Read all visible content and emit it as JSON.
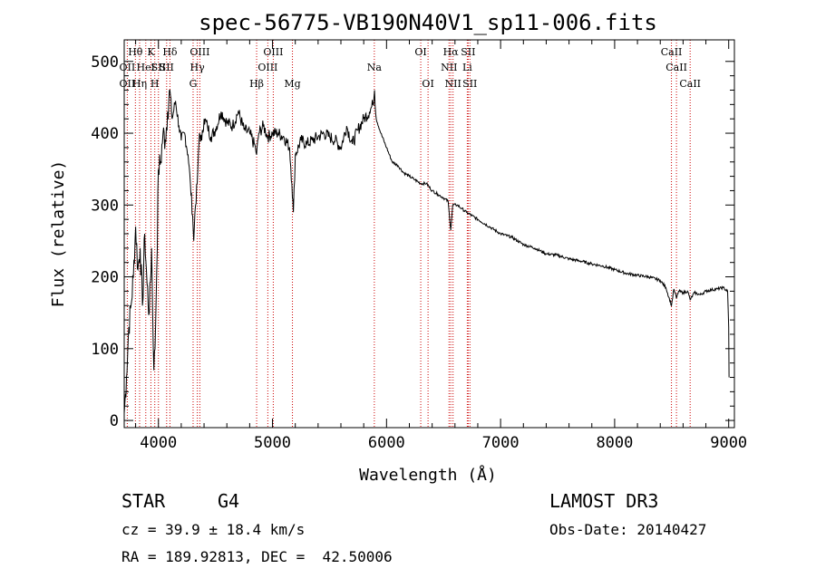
{
  "chart_data": {
    "type": "line",
    "title": "spec-56775-VB190N40V1_sp11-006.fits",
    "xlabel": "Wavelength (Å)",
    "ylabel": "Flux (relative)",
    "xlim": [
      3700,
      9050
    ],
    "ylim": [
      -10,
      530
    ],
    "x_ticks": [
      4000,
      5000,
      6000,
      7000,
      8000,
      9000
    ],
    "x_tick_labels": [
      "4000",
      "5000",
      "6000",
      "7000",
      "8000",
      "9000"
    ],
    "y_ticks": [
      0,
      100,
      200,
      300,
      400,
      500
    ],
    "y_tick_labels": [
      "0",
      "100",
      "200",
      "300",
      "400",
      "500"
    ],
    "grid": false,
    "series": [
      {
        "name": "spectrum",
        "x": [
          3700,
          3720,
          3740,
          3760,
          3780,
          3800,
          3820,
          3840,
          3860,
          3880,
          3900,
          3920,
          3940,
          3960,
          3970,
          3985,
          4000,
          4020,
          4040,
          4060,
          4080,
          4101,
          4120,
          4150,
          4180,
          4200,
          4230,
          4260,
          4280,
          4300,
          4310,
          4320,
          4340,
          4360,
          4380,
          4400,
          4430,
          4460,
          4500,
          4550,
          4600,
          4650,
          4700,
          4750,
          4800,
          4850,
          4861,
          4880,
          4920,
          4960,
          5000,
          5050,
          5100,
          5150,
          5170,
          5183,
          5200,
          5250,
          5300,
          5350,
          5400,
          5450,
          5500,
          5550,
          5600,
          5650,
          5700,
          5750,
          5800,
          5850,
          5880,
          5895,
          5910,
          5950,
          6000,
          6050,
          6100,
          6150,
          6200,
          6250,
          6300,
          6350,
          6400,
          6450,
          6500,
          6540,
          6563,
          6580,
          6620,
          6660,
          6700,
          6750,
          6800,
          6900,
          7000,
          7100,
          7200,
          7300,
          7400,
          7500,
          7600,
          7700,
          7800,
          7900,
          8000,
          8100,
          8200,
          8300,
          8400,
          8450,
          8498,
          8520,
          8542,
          8560,
          8600,
          8640,
          8662,
          8700,
          8750,
          8800,
          8850,
          8900,
          8950,
          8990,
          9000,
          9003
        ],
        "values": [
          10,
          60,
          130,
          160,
          200,
          270,
          210,
          240,
          160,
          260,
          190,
          150,
          240,
          70,
          100,
          210,
          350,
          360,
          400,
          390,
          430,
          460,
          420,
          445,
          410,
          390,
          400,
          370,
          330,
          285,
          250,
          290,
          330,
          400,
          390,
          420,
          410,
          395,
          405,
          430,
          415,
          410,
          430,
          405,
          400,
          380,
          370,
          400,
          410,
          395,
          400,
          400,
          395,
          380,
          330,
          290,
          370,
          390,
          385,
          390,
          395,
          400,
          395,
          390,
          380,
          410,
          385,
          405,
          420,
          430,
          440,
          460,
          420,
          400,
          380,
          360,
          355,
          345,
          340,
          335,
          330,
          330,
          320,
          315,
          310,
          305,
          265,
          300,
          300,
          295,
          290,
          285,
          280,
          270,
          260,
          255,
          245,
          240,
          232,
          230,
          225,
          222,
          218,
          215,
          210,
          205,
          202,
          200,
          195,
          185,
          160,
          183,
          170,
          180,
          178,
          180,
          168,
          178,
          175,
          180,
          182,
          183,
          185,
          180,
          130,
          60
        ]
      }
    ],
    "line_markers": [
      {
        "wavelength": 3727,
        "label": "OII",
        "row": 1
      },
      {
        "wavelength": 3727,
        "label": "OII",
        "row": 2
      },
      {
        "wavelength": 3798,
        "label": "Hθ",
        "row": 0
      },
      {
        "wavelength": 3835,
        "label": "Hη",
        "row": 2
      },
      {
        "wavelength": 3889,
        "label": "HeI",
        "row": 1
      },
      {
        "wavelength": 3934,
        "label": "K",
        "row": 0
      },
      {
        "wavelength": 3968,
        "label": "H",
        "row": 2
      },
      {
        "wavelength": 4000,
        "label": "SII",
        "row": 1
      },
      {
        "wavelength": 4101,
        "label": "Hδ",
        "row": 0
      },
      {
        "wavelength": 4072,
        "label": "SII",
        "row": 1
      },
      {
        "wavelength": 4304,
        "label": "G",
        "row": 2
      },
      {
        "wavelength": 4341,
        "label": "Hγ",
        "row": 1
      },
      {
        "wavelength": 4363,
        "label": "OIII",
        "row": 0
      },
      {
        "wavelength": 4861,
        "label": "Hβ",
        "row": 2
      },
      {
        "wavelength": 4959,
        "label": "OIII",
        "row": 1
      },
      {
        "wavelength": 5007,
        "label": "OIII",
        "row": 0
      },
      {
        "wavelength": 5175,
        "label": "Mg",
        "row": 2
      },
      {
        "wavelength": 5893,
        "label": "Na",
        "row": 1
      },
      {
        "wavelength": 6300,
        "label": "OI",
        "row": 0
      },
      {
        "wavelength": 6364,
        "label": "OI",
        "row": 2
      },
      {
        "wavelength": 6548,
        "label": "NII",
        "row": 1
      },
      {
        "wavelength": 6563,
        "label": "Hα",
        "row": 0
      },
      {
        "wavelength": 6583,
        "label": "NII",
        "row": 2
      },
      {
        "wavelength": 6708,
        "label": "Li",
        "row": 1
      },
      {
        "wavelength": 6716,
        "label": "SII",
        "row": 0
      },
      {
        "wavelength": 6731,
        "label": "SII",
        "row": 2
      },
      {
        "wavelength": 8498,
        "label": "CaII",
        "row": 0
      },
      {
        "wavelength": 8542,
        "label": "CaII",
        "row": 1
      },
      {
        "wavelength": 8662,
        "label": "CaII",
        "row": 2
      }
    ]
  },
  "info": {
    "class_label": "STAR",
    "subclass": "G4",
    "survey": "LAMOST DR3",
    "cz": "cz = 39.9 ± 18.4 km/s",
    "obs_date": "Obs-Date: 20140427",
    "coords": "RA = 189.92813, DEC =  42.50006"
  },
  "colors": {
    "axis": "#000000",
    "spectrum": "#000000",
    "marker": "#cc0000",
    "background": "#ffffff"
  }
}
